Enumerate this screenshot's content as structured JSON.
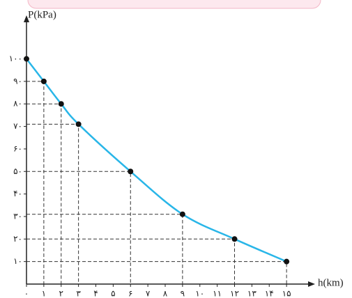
{
  "chart_data": {
    "type": "line",
    "x_label": "h(km)",
    "y_label": "P(kPa)",
    "x": [
      0,
      1,
      2,
      3,
      6,
      9,
      12,
      15
    ],
    "series": [
      {
        "name": "P",
        "color": "#29b6e8",
        "values": [
          100,
          90,
          80,
          71,
          50,
          31,
          20,
          10
        ]
      }
    ],
    "xlim": [
      0,
      16
    ],
    "ylim": [
      0,
      115
    ],
    "xticks": [
      {
        "value": 0,
        "label": "۰"
      },
      {
        "value": 1,
        "label": "۱"
      },
      {
        "value": 2,
        "label": "۲"
      },
      {
        "value": 3,
        "label": "۳"
      },
      {
        "value": 4,
        "label": "۴"
      },
      {
        "value": 5,
        "label": "۵"
      },
      {
        "value": 6,
        "label": "۶"
      },
      {
        "value": 7,
        "label": "۷"
      },
      {
        "value": 8,
        "label": "۸"
      },
      {
        "value": 9,
        "label": "۹"
      },
      {
        "value": 10,
        "label": "۱۰"
      },
      {
        "value": 11,
        "label": "۱۱"
      },
      {
        "value": 12,
        "label": "۱۲"
      },
      {
        "value": 13,
        "label": "۱۳"
      },
      {
        "value": 14,
        "label": "۱۴"
      },
      {
        "value": 15,
        "label": "۱۵"
      }
    ],
    "yticks": [
      {
        "value": 10,
        "label": "۱۰"
      },
      {
        "value": 20,
        "label": "۲۰"
      },
      {
        "value": 30,
        "label": "۳۰"
      },
      {
        "value": 40,
        "label": "۴۰"
      },
      {
        "value": 50,
        "label": "۵۰"
      },
      {
        "value": 60,
        "label": "۶۰"
      },
      {
        "value": 70,
        "label": "۷۰"
      },
      {
        "value": 80,
        "label": "۸۰"
      },
      {
        "value": 90,
        "label": "۹۰"
      },
      {
        "value": 100,
        "label": "۱۰۰"
      }
    ]
  }
}
